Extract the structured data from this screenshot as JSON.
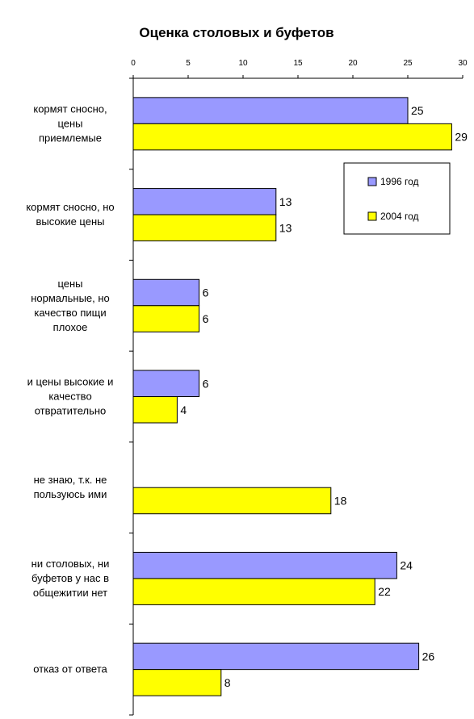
{
  "chart_data": {
    "type": "bar",
    "orientation": "horizontal",
    "title": "Оценка столовых и буфетов",
    "xlim": [
      0,
      30
    ],
    "ticks": [
      0,
      5,
      10,
      15,
      20,
      25,
      30
    ],
    "x_axis_position": "top",
    "grid": false,
    "legend_position": "right",
    "categories": [
      [
        "кормят сносно,",
        "цены",
        "приемлемые"
      ],
      [
        "кормят сносно, но",
        "высокие цены"
      ],
      [
        "цены",
        "нормальные, но",
        "качество пищи",
        "плохое"
      ],
      [
        "и цены высокие и",
        "качество",
        "отвратительно"
      ],
      [
        "не знаю, т.к. не",
        "пользуюсь ими"
      ],
      [
        "ни столовых, ни",
        "буфетов у нас в",
        "общежитии нет"
      ],
      [
        "отказ от ответа"
      ]
    ],
    "series": [
      {
        "name": "1996 год",
        "color": "#9999ff",
        "values": [
          25,
          13,
          6,
          6,
          null,
          24,
          26
        ]
      },
      {
        "name": "2004 год",
        "color": "#ffff00",
        "values": [
          29,
          13,
          6,
          4,
          18,
          22,
          8
        ]
      }
    ]
  }
}
